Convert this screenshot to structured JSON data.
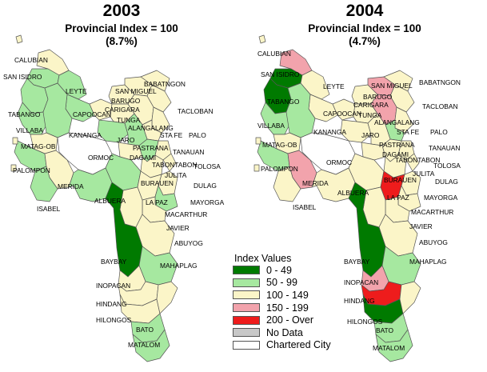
{
  "maps": [
    {
      "year": "2003",
      "index_line": "Provincial Index = 100",
      "pct_line": "(8.7%)",
      "labels": [
        "CALUBIAN",
        "SAN ISIDRO",
        "LEYTE",
        "TABANGO",
        "CAPOOCAN",
        "SAN MIGUEL",
        "BABATNGON",
        "BARUGO",
        "CARIGARA",
        "TACLOBAN",
        "TUNGA",
        "ALANGALANG",
        "STA FE",
        "PALO",
        "VILLABA",
        "KANANGA",
        "JARO",
        "MATAG-OB",
        "PASTRANA",
        "TANAUAN",
        "ORMOC",
        "DAGAMI",
        "TABONTABON",
        "TOLOSA",
        "PALOMPON",
        "JULITA",
        "MERIDA",
        "BURAUEN",
        "DULAG",
        "ALBUERA",
        "LA PAZ",
        "MAYORGA",
        "ISABEL",
        "MACARTHUR",
        "JAVIER",
        "ABUYOG",
        "BAYBAY",
        "MAHAPLAG",
        "INOPACAN",
        "HINDANG",
        "HILONGOS",
        "BATO",
        "MATALOM"
      ]
    },
    {
      "year": "2004",
      "index_line": "Provincial Index = 100",
      "pct_line": "(4.7%)",
      "labels": [
        "CALUBIAN",
        "SAN ISIDRO",
        "LEYTE",
        "TABANGO",
        "CAPOOCAN",
        "SAN MIGUEL",
        "BABATNGON",
        "BARUGO",
        "CARIGARA",
        "TACLOBAN",
        "TUNGA",
        "ALANGALANG",
        "STA FE",
        "PALO",
        "VILLABA",
        "KANANGA",
        "JARO",
        "MATAG-OB",
        "PASTRANA",
        "TANAUAN",
        "ORMOC",
        "DAGAMI",
        "TABONTABON",
        "TOLOSA",
        "PALOMPON",
        "JULITA",
        "MERIDA",
        "BURAUEN",
        "DULAG",
        "ALBUERA",
        "LA PAZ",
        "MAYORGA",
        "ISABEL",
        "MACARTHUR",
        "JAVIER",
        "ABUYOG",
        "BAYBAY",
        "MAHAPLAG",
        "INOPACAN",
        "HINDANG",
        "HILONGOS",
        "BATO",
        "MATALOM"
      ]
    }
  ],
  "legend": {
    "title": "Index Values",
    "items": [
      {
        "label": "0 - 49",
        "color": "#007a00"
      },
      {
        "label": "50 - 99",
        "color": "#a6e8a0"
      },
      {
        "label": "100 - 149",
        "color": "#fbf5c8"
      },
      {
        "label": "150 - 199",
        "color": "#f2a3ac"
      },
      {
        "label": "200 - Over",
        "color": "#ee1c1c"
      },
      {
        "label": "No Data",
        "color": "#c8c8c8"
      },
      {
        "label": "Chartered City",
        "color": "#ffffff"
      }
    ]
  }
}
